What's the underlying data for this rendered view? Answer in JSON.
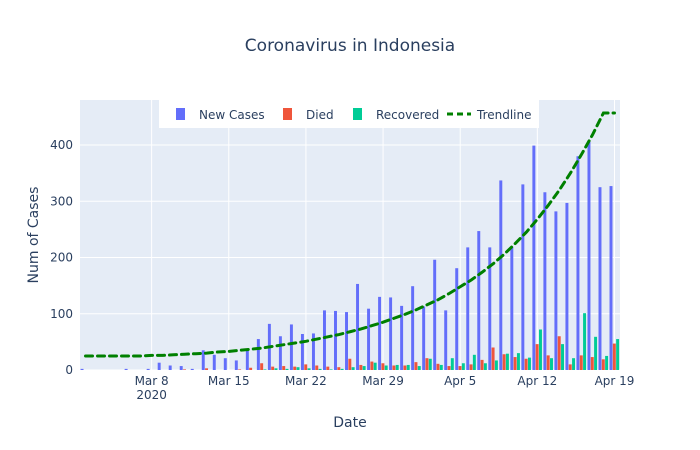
{
  "chart_data": {
    "type": "bar",
    "title": "Coronavirus in Indonesia",
    "xlabel": "Date",
    "ylabel": "Num of Cases",
    "ylim": [
      0,
      480
    ],
    "x_range": [
      "2020-03-02",
      "2020-04-19"
    ],
    "legend": {
      "placement": "top",
      "entries": [
        "New Cases",
        "Died",
        "Recovered",
        "Trendline"
      ]
    },
    "grid": true,
    "x_ticks": [
      {
        "date": "2020-03-08",
        "label": "Mar 8",
        "sublabel": "2020"
      },
      {
        "date": "2020-03-15",
        "label": "Mar 15"
      },
      {
        "date": "2020-03-22",
        "label": "Mar 22"
      },
      {
        "date": "2020-03-29",
        "label": "Mar 29"
      },
      {
        "date": "2020-04-05",
        "label": "Apr 5"
      },
      {
        "date": "2020-04-12",
        "label": "Apr 12"
      },
      {
        "date": "2020-04-19",
        "label": "Apr 19"
      }
    ],
    "y_ticks": [
      0,
      100,
      200,
      300,
      400
    ],
    "dates": [
      "2020-03-02",
      "2020-03-03",
      "2020-03-04",
      "2020-03-05",
      "2020-03-06",
      "2020-03-07",
      "2020-03-08",
      "2020-03-09",
      "2020-03-10",
      "2020-03-11",
      "2020-03-12",
      "2020-03-13",
      "2020-03-14",
      "2020-03-15",
      "2020-03-16",
      "2020-03-17",
      "2020-03-18",
      "2020-03-19",
      "2020-03-20",
      "2020-03-21",
      "2020-03-22",
      "2020-03-23",
      "2020-03-24",
      "2020-03-25",
      "2020-03-26",
      "2020-03-27",
      "2020-03-28",
      "2020-03-29",
      "2020-03-30",
      "2020-03-31",
      "2020-04-01",
      "2020-04-02",
      "2020-04-03",
      "2020-04-04",
      "2020-04-05",
      "2020-04-06",
      "2020-04-07",
      "2020-04-08",
      "2020-04-09",
      "2020-04-10",
      "2020-04-11",
      "2020-04-12",
      "2020-04-13",
      "2020-04-14",
      "2020-04-15",
      "2020-04-16",
      "2020-04-17",
      "2020-04-18",
      "2020-04-19"
    ],
    "series": [
      {
        "name": "New Cases",
        "kind": "bar",
        "color": "#636efa",
        "values": [
          2,
          0,
          0,
          0,
          2,
          0,
          2,
          13,
          8,
          7,
          2,
          35,
          27,
          21,
          17,
          38,
          55,
          82,
          60,
          81,
          64,
          65,
          106,
          105,
          103,
          153,
          109,
          130,
          129,
          114,
          149,
          113,
          196,
          106,
          181,
          218,
          247,
          218,
          337,
          219,
          330,
          399,
          316,
          282,
          297,
          380,
          407,
          325,
          327
        ]
      },
      {
        "name": "Died",
        "kind": "bar",
        "color": "#ef553b",
        "values": [
          0,
          0,
          0,
          0,
          0,
          0,
          0,
          0,
          0,
          1,
          0,
          3,
          0,
          0,
          1,
          4,
          12,
          6,
          7,
          6,
          10,
          8,
          6,
          5,
          20,
          9,
          15,
          12,
          8,
          8,
          14,
          21,
          11,
          7,
          7,
          10,
          18,
          40,
          28,
          23,
          20,
          46,
          26,
          60,
          10,
          26,
          23,
          19,
          47
        ]
      },
      {
        "name": "Recovered",
        "kind": "bar",
        "color": "#00cc96",
        "values": [
          0,
          0,
          0,
          0,
          0,
          0,
          0,
          0,
          0,
          0,
          0,
          0,
          0,
          0,
          0,
          0,
          1,
          3,
          2,
          5,
          3,
          2,
          1,
          2,
          5,
          7,
          13,
          8,
          9,
          9,
          7,
          20,
          9,
          21,
          12,
          27,
          12,
          17,
          29,
          30,
          22,
          72,
          21,
          46,
          21,
          101,
          59,
          25,
          55
        ]
      },
      {
        "name": "Trendline",
        "kind": "line",
        "color": "#008000",
        "values": [
          25,
          25,
          25,
          25,
          25,
          25,
          26,
          26,
          27,
          28,
          29,
          30,
          32,
          33,
          35,
          37,
          39,
          42,
          45,
          48,
          51,
          55,
          59,
          63,
          68,
          73,
          79,
          85,
          92,
          99,
          107,
          116,
          125,
          136,
          148,
          160,
          174,
          189,
          206,
          225,
          245,
          268,
          293,
          320,
          350,
          383,
          418,
          457,
          457
        ]
      }
    ]
  }
}
